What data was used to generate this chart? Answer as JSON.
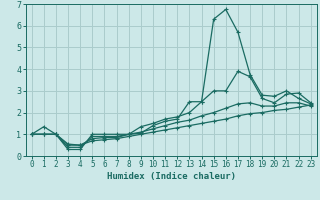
{
  "xlabel": "Humidex (Indice chaleur)",
  "background_color": "#cce8e8",
  "grid_color": "#aacccc",
  "line_color": "#1a6b62",
  "xlim": [
    -0.5,
    23.5
  ],
  "ylim": [
    0,
    7
  ],
  "xticks": [
    0,
    1,
    2,
    3,
    4,
    5,
    6,
    7,
    8,
    9,
    10,
    11,
    12,
    13,
    14,
    15,
    16,
    17,
    18,
    19,
    20,
    21,
    22,
    23
  ],
  "yticks": [
    0,
    1,
    2,
    3,
    4,
    5,
    6,
    7
  ],
  "line1_x": [
    0,
    1,
    2,
    3,
    4,
    5,
    6,
    7,
    8,
    9,
    10,
    11,
    12,
    13,
    14,
    15,
    16,
    17,
    18,
    19,
    20,
    21,
    22,
    23
  ],
  "line1_y": [
    1.0,
    1.35,
    1.0,
    0.3,
    0.3,
    1.0,
    1.0,
    1.0,
    1.0,
    1.35,
    1.5,
    1.7,
    1.8,
    2.0,
    2.5,
    6.3,
    6.75,
    5.7,
    3.75,
    2.8,
    2.75,
    3.0,
    2.65,
    2.4
  ],
  "line2_x": [
    0,
    1,
    2,
    3,
    4,
    5,
    6,
    7,
    8,
    9,
    10,
    11,
    12,
    13,
    14,
    15,
    16,
    17,
    18,
    19,
    20,
    21,
    22,
    23
  ],
  "line2_y": [
    1.0,
    1.0,
    1.0,
    0.4,
    0.4,
    0.9,
    0.9,
    0.9,
    1.0,
    1.05,
    1.4,
    1.6,
    1.7,
    2.5,
    2.5,
    3.0,
    3.0,
    3.9,
    3.65,
    2.65,
    2.45,
    2.85,
    2.9,
    2.45
  ],
  "line3_x": [
    0,
    1,
    2,
    3,
    4,
    5,
    6,
    7,
    8,
    9,
    10,
    11,
    12,
    13,
    14,
    15,
    16,
    17,
    18,
    19,
    20,
    21,
    22,
    23
  ],
  "line3_y": [
    1.0,
    1.0,
    1.0,
    0.5,
    0.5,
    0.8,
    0.85,
    0.85,
    1.0,
    1.1,
    1.25,
    1.4,
    1.55,
    1.65,
    1.85,
    2.0,
    2.2,
    2.4,
    2.45,
    2.3,
    2.3,
    2.45,
    2.45,
    2.3
  ],
  "line4_x": [
    0,
    1,
    2,
    3,
    4,
    5,
    6,
    7,
    8,
    9,
    10,
    11,
    12,
    13,
    14,
    15,
    16,
    17,
    18,
    19,
    20,
    21,
    22,
    23
  ],
  "line4_y": [
    1.0,
    1.0,
    1.0,
    0.55,
    0.5,
    0.7,
    0.75,
    0.8,
    0.9,
    1.0,
    1.1,
    1.2,
    1.3,
    1.4,
    1.5,
    1.6,
    1.7,
    1.85,
    1.95,
    2.0,
    2.1,
    2.15,
    2.25,
    2.35
  ]
}
